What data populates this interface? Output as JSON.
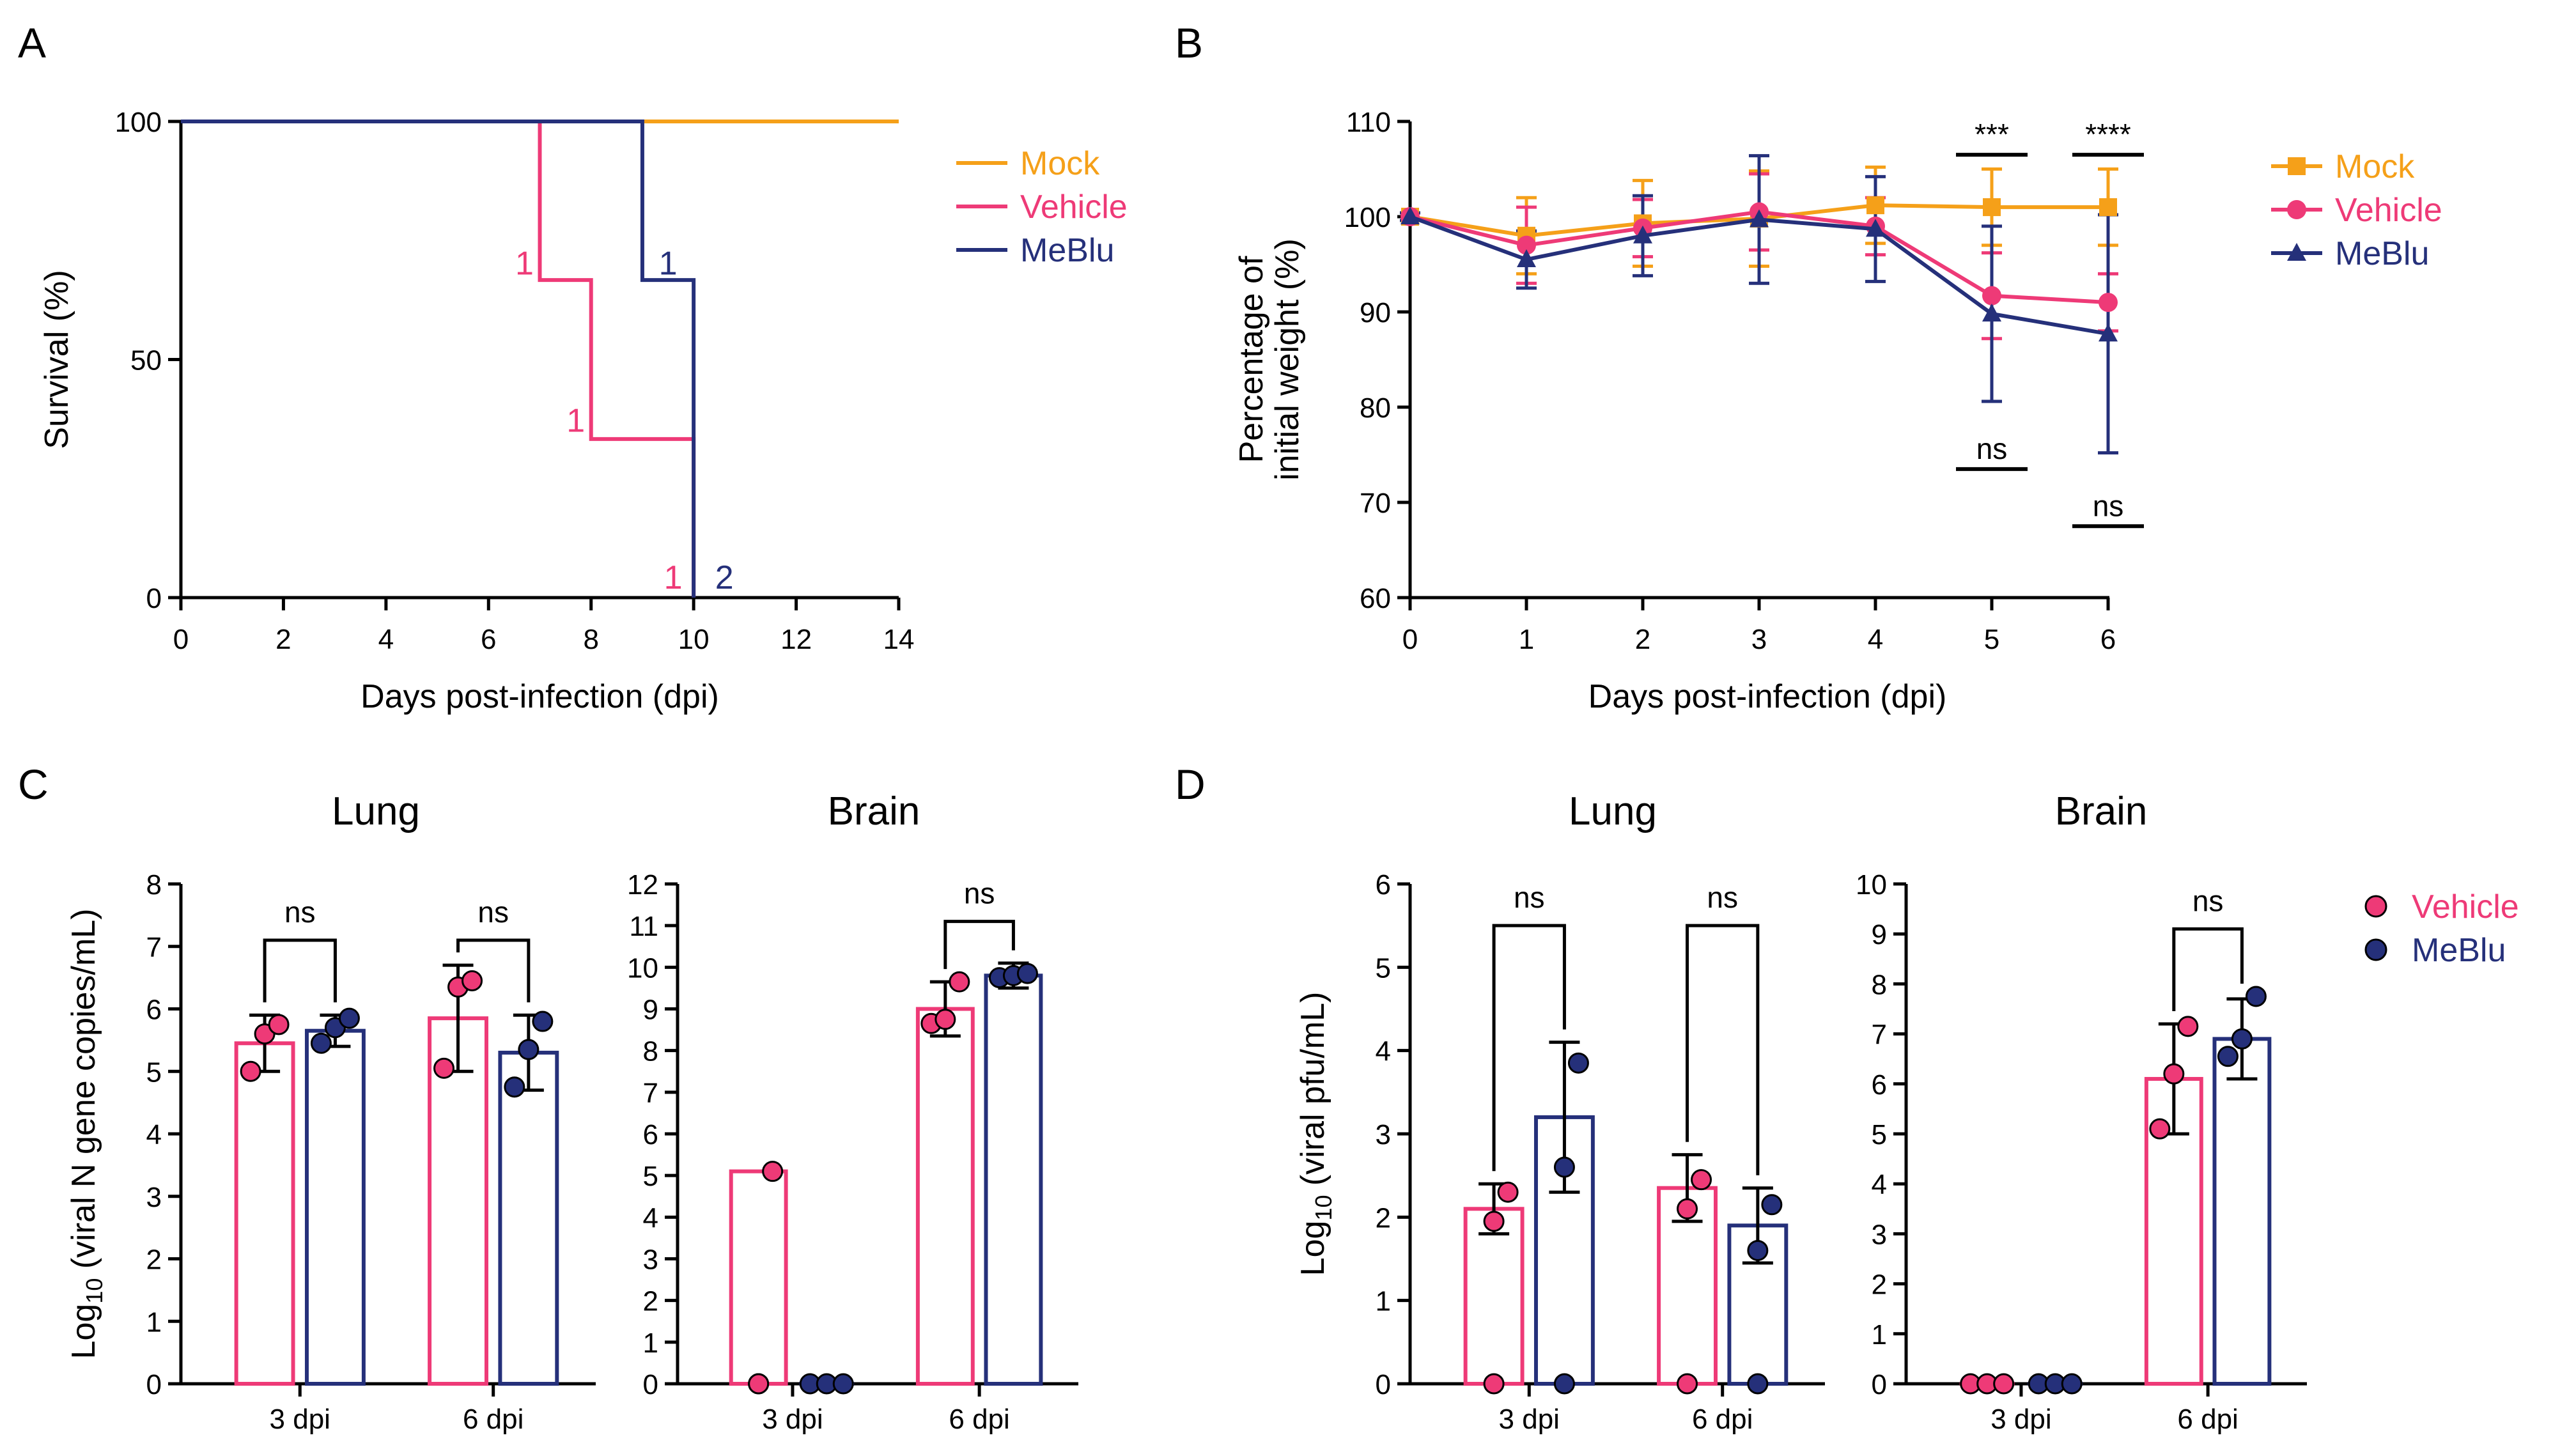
{
  "colors": {
    "mock": "#f5a019",
    "vehicle": "#ee3a77",
    "meblu": "#25307a",
    "black": "#000000"
  },
  "chart_data": [
    {
      "id": "A",
      "panel": "A",
      "type": "line",
      "subtype": "step-survival",
      "xlabel": "Days post-infection (dpi)",
      "ylabel": "Survival (%)",
      "xlim": [
        0,
        14
      ],
      "ylim": [
        0,
        100
      ],
      "xticks": [
        "0",
        "2",
        "4",
        "6",
        "8",
        "10",
        "12",
        "14"
      ],
      "yticks": [
        "0",
        "50",
        "100"
      ],
      "legend": [
        "Mock",
        "Vehicle",
        "MeBlu"
      ],
      "legend_position": "right",
      "series": [
        {
          "name": "Mock",
          "color": "mock",
          "x": [
            0,
            14
          ],
          "y": [
            100,
            100
          ]
        },
        {
          "name": "Vehicle",
          "color": "vehicle",
          "x": [
            0,
            7,
            7,
            8,
            8,
            10,
            10
          ],
          "y": [
            100,
            100,
            66.7,
            66.7,
            33.3,
            33.3,
            0
          ]
        },
        {
          "name": "MeBlu",
          "color": "meblu",
          "x": [
            0,
            9,
            9,
            10,
            10
          ],
          "y": [
            100,
            100,
            66.7,
            66.7,
            0
          ]
        }
      ],
      "annotations": [
        {
          "text": "1",
          "color": "vehicle",
          "x": 6.7,
          "y": 70
        },
        {
          "text": "1",
          "color": "vehicle",
          "x": 7.7,
          "y": 37
        },
        {
          "text": "1",
          "color": "vehicle",
          "x": 9.6,
          "y": 4
        },
        {
          "text": "1",
          "color": "meblu",
          "x": 9.5,
          "y": 70
        },
        {
          "text": "2",
          "color": "meblu",
          "x": 10.6,
          "y": 4
        }
      ]
    },
    {
      "id": "B",
      "panel": "B",
      "type": "line",
      "xlabel": "Days post-infection (dpi)",
      "ylabel": [
        "Percentage of",
        "initial weight (%)"
      ],
      "xlim": [
        0,
        6
      ],
      "ylim": [
        60,
        110
      ],
      "xticks": [
        "0",
        "1",
        "2",
        "3",
        "4",
        "5",
        "6"
      ],
      "yticks": [
        "60",
        "70",
        "80",
        "90",
        "100",
        "110"
      ],
      "legend": [
        "Mock",
        "Vehicle",
        "MeBlu"
      ],
      "legend_position": "right",
      "series": [
        {
          "name": "Mock",
          "color": "mock",
          "marker": "square",
          "x": [
            0,
            1,
            2,
            3,
            4,
            5,
            6
          ],
          "y": [
            100,
            98,
            99.3,
            99.8,
            101.2,
            101,
            101
          ],
          "err": [
            0.4,
            4,
            4.5,
            5,
            4,
            4,
            4
          ]
        },
        {
          "name": "Vehicle",
          "color": "vehicle",
          "marker": "circle",
          "x": [
            0,
            1,
            2,
            3,
            4,
            5,
            6
          ],
          "y": [
            100,
            97,
            98.8,
            100.5,
            99,
            91.7,
            91
          ],
          "err": [
            0.4,
            4,
            3,
            4,
            3,
            4.5,
            3
          ]
        },
        {
          "name": "MeBlu",
          "color": "meblu",
          "marker": "triangle",
          "x": [
            0,
            1,
            2,
            3,
            4,
            5,
            6
          ],
          "y": [
            100,
            95.5,
            98,
            99.7,
            98.7,
            89.8,
            87.7
          ],
          "err": [
            0.4,
            3,
            4.2,
            6.7,
            5.5,
            9.2,
            12.5
          ]
        }
      ],
      "significance": [
        {
          "label": "***",
          "x": 5,
          "y": 106.5,
          "position": "above"
        },
        {
          "label": "****",
          "x": 6,
          "y": 106.5,
          "position": "above"
        },
        {
          "label": "ns",
          "x": 5,
          "y": 73.5,
          "position": "above"
        },
        {
          "label": "ns",
          "x": 6,
          "y": 67.5,
          "position": "above"
        }
      ]
    },
    {
      "id": "C_lung",
      "panel": "C",
      "type": "bar",
      "title": "Lung",
      "ylabel": "Log10 (viral N gene copies/mL)",
      "ylim": [
        0,
        8
      ],
      "yticks": [
        "0",
        "1",
        "2",
        "3",
        "4",
        "5",
        "6",
        "7",
        "8"
      ],
      "categories": [
        "3 dpi",
        "6 dpi"
      ],
      "series": [
        {
          "name": "Vehicle",
          "color": "vehicle",
          "values": [
            5.45,
            5.85
          ],
          "err": [
            0.45,
            0.85
          ],
          "points": [
            [
              5.0,
              5.6,
              5.75
            ],
            [
              5.05,
              6.35,
              6.45
            ]
          ]
        },
        {
          "name": "MeBlu",
          "color": "meblu",
          "values": [
            5.65,
            5.3
          ],
          "err": [
            0.25,
            0.6
          ],
          "points": [
            [
              5.45,
              5.7,
              5.85
            ],
            [
              4.75,
              5.35,
              5.8
            ]
          ]
        }
      ],
      "significance": [
        {
          "label": "ns",
          "category": "3 dpi",
          "y": 7.1
        },
        {
          "label": "ns",
          "category": "6 dpi",
          "y": 7.1
        }
      ]
    },
    {
      "id": "C_brain",
      "panel": "C",
      "type": "bar",
      "title": "Brain",
      "ylim": [
        0,
        12
      ],
      "yticks": [
        "0",
        "1",
        "2",
        "3",
        "4",
        "5",
        "6",
        "7",
        "8",
        "9",
        "10",
        "11",
        "12"
      ],
      "categories": [
        "3 dpi",
        "6 dpi"
      ],
      "series": [
        {
          "name": "Vehicle",
          "color": "vehicle",
          "values": [
            5.1,
            9.0
          ],
          "err": [
            0,
            0.65
          ],
          "points": [
            [
              0,
              0,
              5.1
            ],
            [
              8.65,
              8.75,
              9.65
            ]
          ]
        },
        {
          "name": "MeBlu",
          "color": "meblu",
          "values": [
            0,
            9.8
          ],
          "err": [
            0,
            0.3
          ],
          "points": [
            [
              0,
              0,
              0
            ],
            [
              9.75,
              9.8,
              9.85
            ]
          ]
        }
      ],
      "significance": [
        {
          "label": "ns",
          "category": "6 dpi",
          "y": 11.1
        }
      ]
    },
    {
      "id": "D_lung",
      "panel": "D",
      "type": "bar",
      "title": "Lung",
      "ylabel": "Log10 (viral pfu/mL)",
      "ylim": [
        0,
        6
      ],
      "yticks": [
        "0",
        "1",
        "2",
        "3",
        "4",
        "5",
        "6"
      ],
      "categories": [
        "3 dpi",
        "6 dpi"
      ],
      "series": [
        {
          "name": "Vehicle",
          "color": "vehicle",
          "values": [
            2.1,
            2.35
          ],
          "err": [
            0.3,
            0.4
          ],
          "points": [
            [
              0,
              1.95,
              2.3
            ],
            [
              0,
              2.1,
              2.45
            ]
          ]
        },
        {
          "name": "MeBlu",
          "color": "meblu",
          "values": [
            3.2,
            1.9
          ],
          "err": [
            0.9,
            0.45
          ],
          "points": [
            [
              0,
              2.6,
              3.85
            ],
            [
              0,
              1.6,
              2.15
            ]
          ]
        }
      ],
      "significance": [
        {
          "label": "ns",
          "category": "3 dpi",
          "y": 5.5
        },
        {
          "label": "ns",
          "category": "6 dpi",
          "y": 5.5
        }
      ]
    },
    {
      "id": "D_brain",
      "panel": "D",
      "type": "bar",
      "title": "Brain",
      "ylim": [
        0,
        10
      ],
      "yticks": [
        "0",
        "1",
        "2",
        "3",
        "4",
        "5",
        "6",
        "7",
        "8",
        "9",
        "10"
      ],
      "categories": [
        "3 dpi",
        "6 dpi"
      ],
      "legend": [
        "Vehicle",
        "MeBlu"
      ],
      "legend_position": "right",
      "series": [
        {
          "name": "Vehicle",
          "color": "vehicle",
          "values": [
            0,
            6.1
          ],
          "err": [
            0,
            1.1
          ],
          "points": [
            [
              0,
              0,
              0
            ],
            [
              5.1,
              6.2,
              7.15
            ]
          ]
        },
        {
          "name": "MeBlu",
          "color": "meblu",
          "values": [
            0,
            6.9
          ],
          "err": [
            0,
            0.8
          ],
          "points": [
            [
              0,
              0,
              0
            ],
            [
              6.55,
              6.9,
              7.75
            ]
          ]
        }
      ],
      "significance": [
        {
          "label": "ns",
          "category": "6 dpi",
          "y": 9.1
        }
      ]
    }
  ]
}
